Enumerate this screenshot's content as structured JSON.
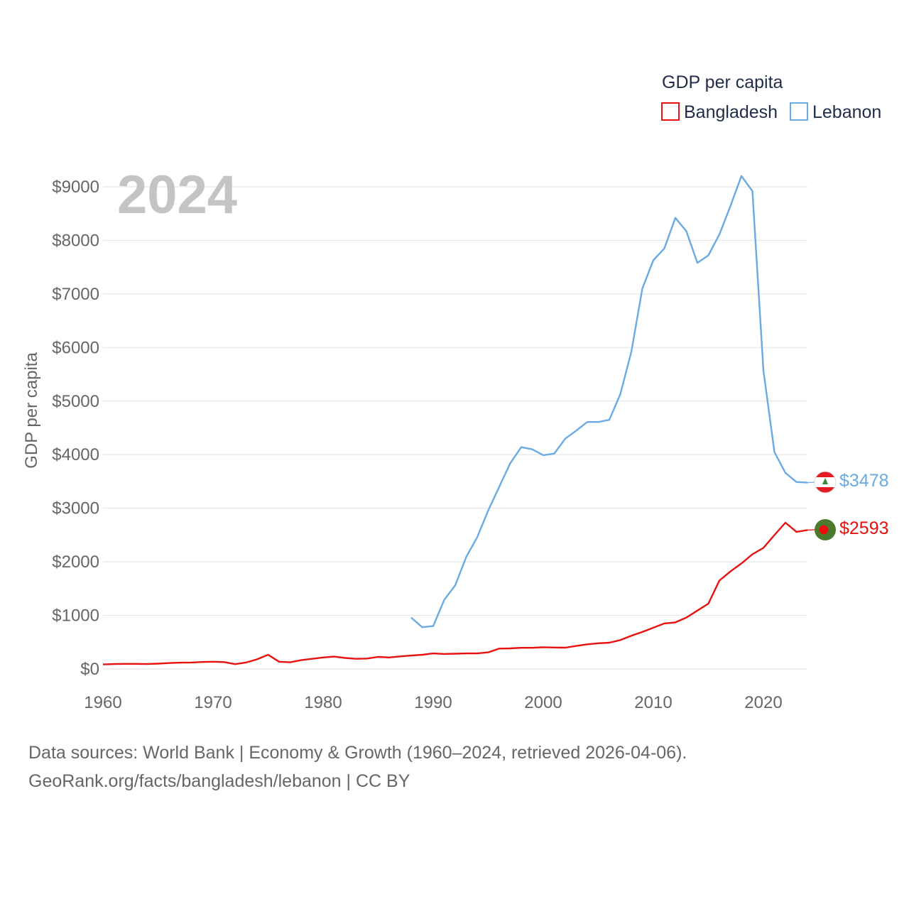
{
  "chart_data": {
    "type": "line",
    "year_overlay": "2024",
    "ylabel": "GDP per capita",
    "xlabel": "",
    "xlim": [
      1960,
      2024
    ],
    "ylim": [
      0,
      9000
    ],
    "x_ticks": [
      1960,
      1970,
      1980,
      1990,
      2000,
      2010,
      2020
    ],
    "x_tick_labels": [
      "1960",
      "1970",
      "1980",
      "1990",
      "2000",
      "2010",
      "2020"
    ],
    "y_ticks": [
      0,
      1000,
      2000,
      3000,
      4000,
      5000,
      6000,
      7000,
      8000,
      9000
    ],
    "y_tick_labels": [
      "$0",
      "$1000",
      "$2000",
      "$3000",
      "$4000",
      "$5000",
      "$6000",
      "$7000",
      "$8000",
      "$9000"
    ],
    "legend": {
      "title": "GDP per capita",
      "position": "top-right"
    },
    "series": [
      {
        "name": "Bangladesh",
        "color": "#e8110f",
        "end_label": "$2593",
        "flag": "bangladesh-flag",
        "x": [
          1960,
          1961,
          1962,
          1963,
          1964,
          1965,
          1966,
          1967,
          1968,
          1969,
          1970,
          1971,
          1972,
          1973,
          1974,
          1975,
          1976,
          1977,
          1978,
          1979,
          1980,
          1981,
          1982,
          1983,
          1984,
          1985,
          1986,
          1987,
          1988,
          1989,
          1990,
          1991,
          1992,
          1993,
          1994,
          1995,
          1996,
          1997,
          1998,
          1999,
          2000,
          2001,
          2002,
          2003,
          2004,
          2005,
          2006,
          2007,
          2008,
          2009,
          2010,
          2011,
          2012,
          2013,
          2014,
          2015,
          2016,
          2017,
          2018,
          2019,
          2020,
          2021,
          2022,
          2023,
          2024
        ],
        "values": [
          85,
          92,
          95,
          95,
          92,
          100,
          110,
          118,
          120,
          130,
          135,
          128,
          90,
          120,
          180,
          265,
          135,
          125,
          165,
          190,
          215,
          230,
          205,
          190,
          195,
          225,
          215,
          235,
          250,
          265,
          290,
          280,
          285,
          290,
          290,
          310,
          380,
          385,
          395,
          395,
          405,
          400,
          398,
          430,
          460,
          480,
          490,
          540,
          620,
          690,
          770,
          850,
          870,
          960,
          1090,
          1220,
          1650,
          1820,
          1970,
          2140,
          2260,
          2500,
          2730,
          2560,
          2593
        ]
      },
      {
        "name": "Lebanon",
        "color": "#6aaae4",
        "end_label": "$3478",
        "flag": "lebanon-flag",
        "x": [
          1988,
          1989,
          1990,
          1991,
          1992,
          1993,
          1994,
          1995,
          1996,
          1997,
          1998,
          1999,
          2000,
          2001,
          2002,
          2003,
          2004,
          2005,
          2006,
          2007,
          2008,
          2009,
          2010,
          2011,
          2012,
          2013,
          2014,
          2015,
          2016,
          2017,
          2018,
          2019,
          2020,
          2021,
          2022,
          2023,
          2024
        ],
        "values": [
          960,
          780,
          800,
          1290,
          1560,
          2090,
          2460,
          2960,
          3400,
          3840,
          4140,
          4100,
          3990,
          4020,
          4300,
          4450,
          4610,
          4610,
          4650,
          5130,
          5920,
          7100,
          7630,
          7850,
          8420,
          8170,
          7580,
          7720,
          8110,
          8640,
          9200,
          8920,
          5570,
          4050,
          3660,
          3490,
          3478
        ]
      }
    ]
  },
  "source": {
    "line1": "Data sources: World Bank | Economy & Growth (1960–2024, retrieved 2026-04-06).",
    "line2": "GeoRank.org/facts/bangladesh/lebanon | CC BY"
  }
}
